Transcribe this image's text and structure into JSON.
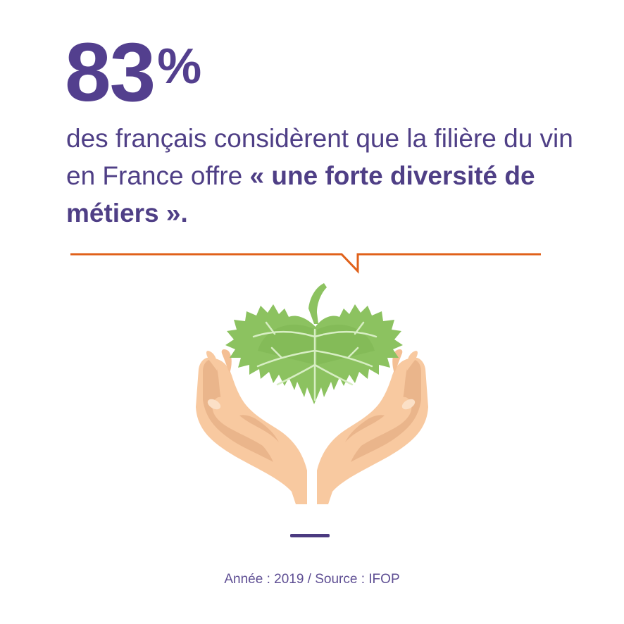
{
  "stat": {
    "value": "83",
    "unit": "%"
  },
  "headline": {
    "part1": "des français considèrent que la filière du vin en France offre ",
    "emphasis": "« une forte diversité de métiers »",
    "end": "."
  },
  "illustration": {
    "icon": "hands-holding-vine-leaf-icon"
  },
  "footer": {
    "source": "Année : 2019 / Source : IFOP"
  },
  "colors": {
    "purple": "#533f8e",
    "orange": "#e0611a",
    "leaf_green": "#8cc260",
    "skin": "#f8c9a0"
  }
}
